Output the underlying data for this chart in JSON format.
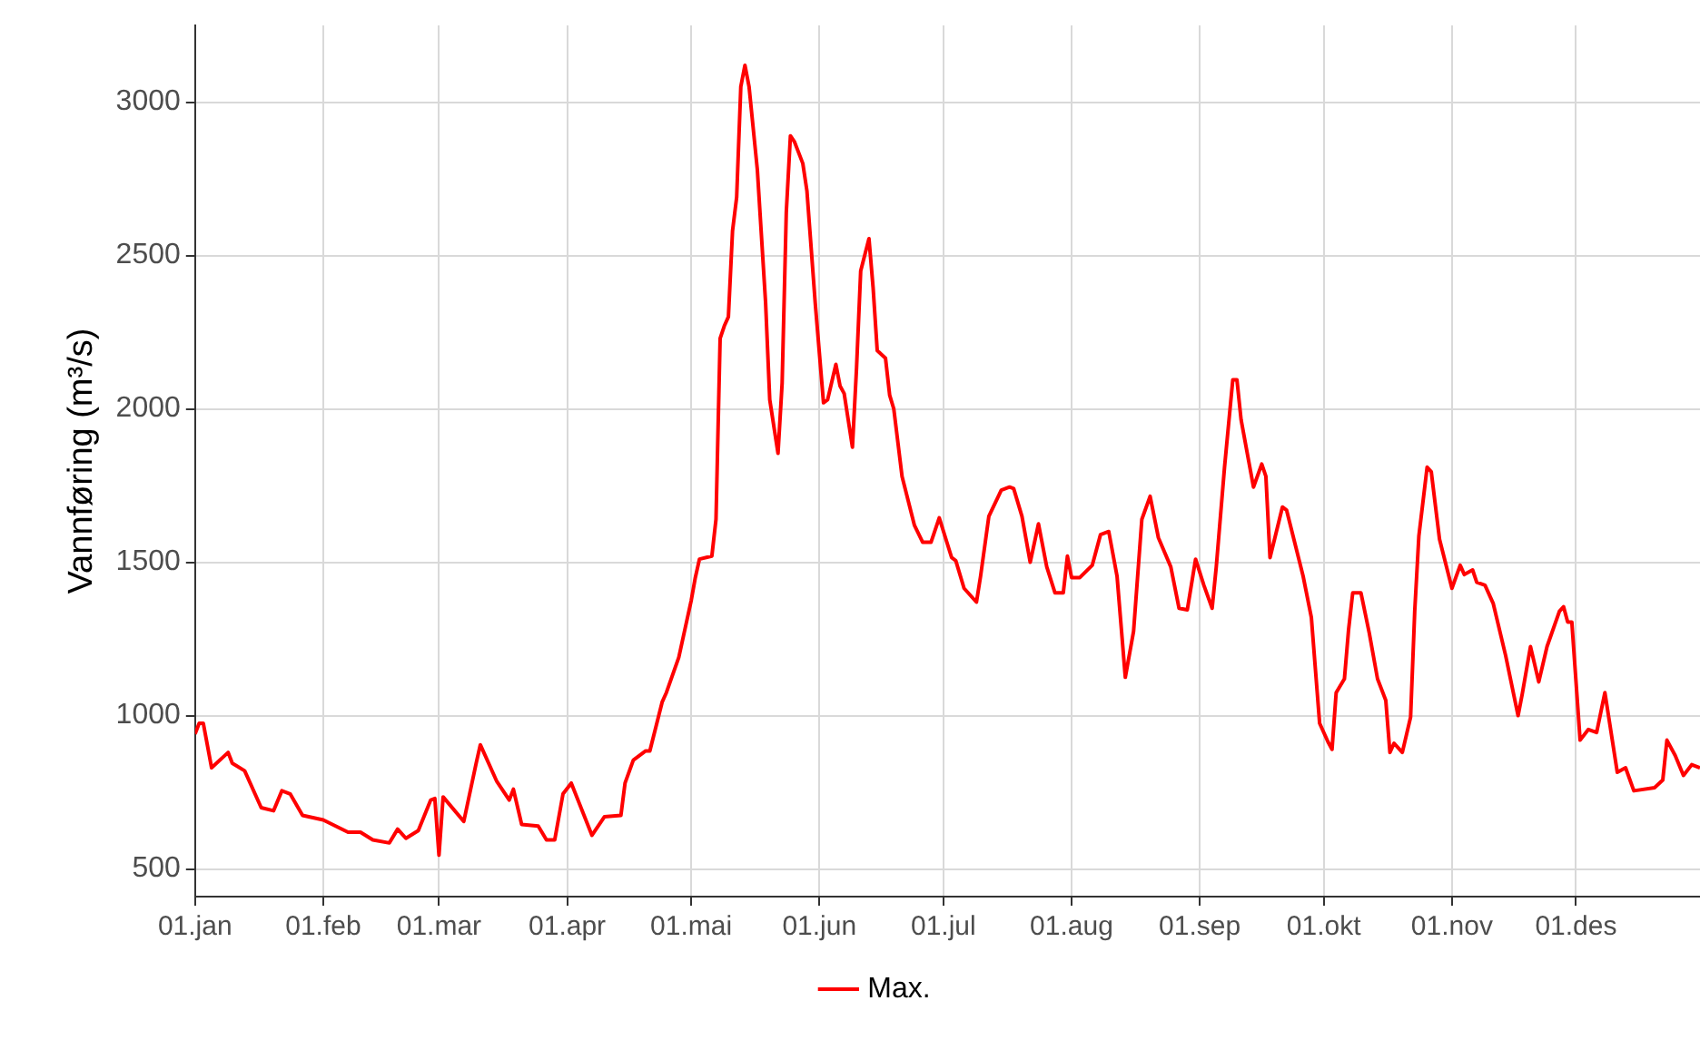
{
  "chart_data": {
    "type": "line",
    "ylabel": "Vannføring (m³/s)",
    "legend": "bottom",
    "grid": true,
    "marker": "none",
    "line_style": "solid",
    "xlim": [
      "--01-01",
      "--12-31"
    ],
    "xticks": [
      {
        "value": "--01-01",
        "label": "01.jan"
      },
      {
        "value": "--02-01",
        "label": "01.feb"
      },
      {
        "value": "--03-01",
        "label": "01.mar"
      },
      {
        "value": "--04-01",
        "label": "01.apr"
      },
      {
        "value": "--05-01",
        "label": "01.mai"
      },
      {
        "value": "--06-01",
        "label": "01.jun"
      },
      {
        "value": "--07-01",
        "label": "01.jul"
      },
      {
        "value": "--08-01",
        "label": "01.aug"
      },
      {
        "value": "--09-01",
        "label": "01.sep"
      },
      {
        "value": "--10-01",
        "label": "01.okt"
      },
      {
        "value": "--11-01",
        "label": "01.nov"
      },
      {
        "value": "--12-01",
        "label": "01.des"
      }
    ],
    "ylim": [
      410,
      3250
    ],
    "yticks": [
      500,
      1000,
      1500,
      2000,
      2500,
      3000
    ],
    "x": [
      "--01-01",
      "--01-02",
      "--01-03",
      "--01-05",
      "--01-09",
      "--01-10",
      "--01-13",
      "--01-17",
      "--01-20",
      "--01-22",
      "--01-24",
      "--01-27",
      "--02-01",
      "--02-07",
      "--02-10",
      "--02-13",
      "--02-17",
      "--02-19",
      "--02-21",
      "--02-24",
      "--02-27",
      "--02-28",
      "--03-01",
      "--03-02",
      "--03-07",
      "--03-10",
      "--03-11",
      "--03-15",
      "--03-18",
      "--03-19",
      "--03-21",
      "--03-25",
      "--03-27",
      "--03-29",
      "--03-31",
      "--04-02",
      "--04-07",
      "--04-10",
      "--04-14",
      "--04-15",
      "--04-17",
      "--04-20",
      "--04-21",
      "--04-24",
      "--04-25",
      "--04-28",
      "--05-01",
      "--05-02",
      "--05-03",
      "--05-06",
      "--05-07",
      "--05-08",
      "--05-09",
      "--05-10",
      "--05-11",
      "--05-12",
      "--05-13",
      "--05-14",
      "--05-15",
      "--05-17",
      "--05-19",
      "--05-20",
      "--05-22",
      "--05-23",
      "--05-24",
      "--05-25",
      "--05-26",
      "--05-28",
      "--05-29",
      "--05-31",
      "--06-02",
      "--06-03",
      "--06-05",
      "--06-06",
      "--06-07",
      "--06-09",
      "--06-10",
      "--06-11",
      "--06-13",
      "--06-14",
      "--06-15",
      "--06-17",
      "--06-18",
      "--06-19",
      "--06-21",
      "--06-24",
      "--06-26",
      "--06-28",
      "--06-30",
      "--07-03",
      "--07-04",
      "--07-06",
      "--07-09",
      "--07-10",
      "--07-12",
      "--07-15",
      "--07-17",
      "--07-18",
      "--07-20",
      "--07-22",
      "--07-24",
      "--07-26",
      "--07-28",
      "--07-30",
      "--07-31",
      "--08-01",
      "--08-03",
      "--08-06",
      "--08-08",
      "--08-10",
      "--08-12",
      "--08-14",
      "--08-16",
      "--08-18",
      "--08-20",
      "--08-22",
      "--08-25",
      "--08-27",
      "--08-29",
      "--08-31",
      "--09-02",
      "--09-04",
      "--09-05",
      "--09-07",
      "--09-09",
      "--09-10",
      "--09-11",
      "--09-14",
      "--09-16",
      "--09-17",
      "--09-18",
      "--09-21",
      "--09-22",
      "--09-26",
      "--09-28",
      "--09-30",
      "--10-02",
      "--10-03",
      "--10-04",
      "--10-06",
      "--10-07",
      "--10-08",
      "--10-10",
      "--10-12",
      "--10-14",
      "--10-16",
      "--10-17",
      "--10-18",
      "--10-20",
      "--10-22",
      "--10-23",
      "--10-24",
      "--10-26",
      "--10-27",
      "--10-29",
      "--11-01",
      "--11-03",
      "--11-04",
      "--11-06",
      "--11-07",
      "--11-09",
      "--11-11",
      "--11-14",
      "--11-17",
      "--11-18",
      "--11-20",
      "--11-22",
      "--11-24",
      "--11-27",
      "--11-28",
      "--11-29",
      "--11-30",
      "--12-02",
      "--12-04",
      "--12-06",
      "--12-08",
      "--12-11",
      "--12-13",
      "--12-15",
      "--12-20",
      "--12-22",
      "--12-23",
      "--12-25",
      "--12-27",
      "--12-29",
      "--12-31"
    ],
    "series": [
      {
        "name": "Max.",
        "color": "#ff0000",
        "values": [
          940,
          975,
          975,
          830,
          880,
          845,
          820,
          700,
          690,
          755,
          745,
          675,
          660,
          620,
          620,
          595,
          585,
          630,
          600,
          625,
          725,
          730,
          545,
          735,
          655,
          845,
          905,
          785,
          725,
          760,
          645,
          640,
          595,
          595,
          745,
          780,
          610,
          670,
          675,
          780,
          855,
          885,
          885,
          1045,
          1075,
          1190,
          1375,
          1450,
          1510,
          1520,
          1640,
          2230,
          2270,
          2300,
          2580,
          2690,
          3050,
          3120,
          3050,
          2780,
          2345,
          2030,
          1855,
          2085,
          2640,
          2890,
          2870,
          2800,
          2710,
          2345,
          2020,
          2030,
          2145,
          2075,
          2050,
          1875,
          2135,
          2450,
          2555,
          2395,
          2190,
          2165,
          2045,
          2000,
          1780,
          1620,
          1565,
          1565,
          1645,
          1515,
          1505,
          1415,
          1370,
          1455,
          1650,
          1735,
          1745,
          1740,
          1650,
          1500,
          1625,
          1485,
          1400,
          1400,
          1520,
          1450,
          1450,
          1490,
          1590,
          1600,
          1455,
          1125,
          1275,
          1640,
          1715,
          1580,
          1485,
          1350,
          1345,
          1510,
          1425,
          1350,
          1485,
          1810,
          2095,
          2095,
          1965,
          1745,
          1820,
          1780,
          1515,
          1680,
          1670,
          1455,
          1320,
          975,
          915,
          890,
          1075,
          1120,
          1280,
          1400,
          1400,
          1270,
          1120,
          1050,
          880,
          910,
          880,
          995,
          1340,
          1585,
          1810,
          1795,
          1575,
          1415,
          1490,
          1460,
          1475,
          1435,
          1425,
          1365,
          1195,
          1000,
          1070,
          1225,
          1110,
          1225,
          1340,
          1355,
          1305,
          1305,
          920,
          955,
          945,
          1075,
          815,
          830,
          755,
          765,
          790,
          920,
          870,
          805,
          840,
          830
        ]
      }
    ]
  }
}
